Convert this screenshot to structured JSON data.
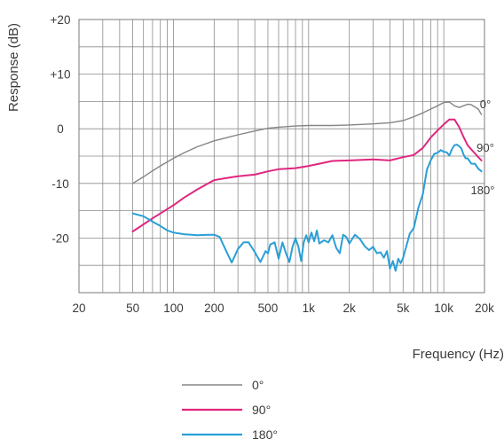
{
  "chart_data": {
    "type": "line",
    "xlabel": "Frequency (Hz)",
    "ylabel": "Response (dB)",
    "x_scale": "log",
    "xlim": [
      20,
      20000
    ],
    "ylim": [
      -30,
      20
    ],
    "grid": true,
    "legend_position": "bottom",
    "x_ticks": [
      {
        "value": 20,
        "label": "20"
      },
      {
        "value": 50,
        "label": "50"
      },
      {
        "value": 100,
        "label": "100"
      },
      {
        "value": 200,
        "label": "200"
      },
      {
        "value": 500,
        "label": "500"
      },
      {
        "value": 1000,
        "label": "1k"
      },
      {
        "value": 2000,
        "label": "2k"
      },
      {
        "value": 5000,
        "label": "5k"
      },
      {
        "value": 10000,
        "label": "10k"
      },
      {
        "value": 20000,
        "label": "20k"
      }
    ],
    "y_ticks": [
      {
        "value": 20,
        "label": "+20"
      },
      {
        "value": 10,
        "label": "+10"
      },
      {
        "value": 0,
        "label": "0"
      },
      {
        "value": -10,
        "label": "-10"
      },
      {
        "value": -20,
        "label": "-20"
      }
    ],
    "series": [
      {
        "name": "0°",
        "color": "#858585",
        "x": [
          50,
          60,
          70,
          80,
          100,
          120,
          150,
          200,
          250,
          300,
          400,
          500,
          600,
          800,
          1000,
          1500,
          2000,
          3000,
          4000,
          5000,
          6000,
          7000,
          8000,
          9000,
          10000,
          11000,
          12000,
          13000,
          14000,
          15000,
          16000,
          17000,
          18000,
          19000
        ],
        "y": [
          -10,
          -8.8,
          -7.7,
          -6.8,
          -5.4,
          -4.4,
          -3.3,
          -2.2,
          -1.6,
          -1.1,
          -0.4,
          0.1,
          0.3,
          0.5,
          0.6,
          0.6,
          0.7,
          0.9,
          1.1,
          1.5,
          2.2,
          2.9,
          3.6,
          4.2,
          4.8,
          4.9,
          4.2,
          3.9,
          4.2,
          4.5,
          4.4,
          4.0,
          3.6,
          2.6
        ]
      },
      {
        "name": "90°",
        "color": "#e0267f",
        "x": [
          50,
          60,
          70,
          80,
          100,
          120,
          150,
          200,
          250,
          300,
          400,
          500,
          600,
          800,
          1000,
          1500,
          2000,
          3000,
          4000,
          5000,
          6000,
          7000,
          8000,
          9000,
          10000,
          11000,
          12000,
          13000,
          14000,
          15000,
          16000,
          17000,
          18000,
          19000
        ],
        "y": [
          -18.8,
          -17.5,
          -16.4,
          -15.5,
          -14,
          -12.6,
          -11.1,
          -9.4,
          -9,
          -8.7,
          -8.4,
          -7.8,
          -7.4,
          -7.2,
          -6.8,
          -5.9,
          -5.8,
          -5.6,
          -5.8,
          -5.2,
          -4.8,
          -3.5,
          -1.6,
          -0.3,
          0.8,
          1.7,
          1.7,
          0.3,
          -1.5,
          -3,
          -3.8,
          -4.5,
          -5.2,
          -5.8
        ]
      },
      {
        "name": "180°",
        "color": "#2a9fd6",
        "x": [
          50,
          60,
          70,
          80,
          90,
          100,
          120,
          150,
          180,
          200,
          220,
          250,
          270,
          300,
          330,
          360,
          400,
          440,
          480,
          500,
          520,
          560,
          600,
          640,
          680,
          720,
          760,
          800,
          840,
          880,
          920,
          960,
          1000,
          1050,
          1100,
          1150,
          1200,
          1300,
          1400,
          1500,
          1600,
          1700,
          1800,
          1900,
          2000,
          2200,
          2400,
          2600,
          2800,
          3000,
          3200,
          3400,
          3600,
          3800,
          4000,
          4200,
          4400,
          4600,
          4800,
          5000,
          5300,
          5600,
          6000,
          6500,
          7000,
          7500,
          8000,
          8500,
          9000,
          9500,
          10000,
          10500,
          11000,
          11500,
          12000,
          12500,
          13000,
          13500,
          14000,
          14500,
          15000,
          16000,
          17000,
          18000,
          19000
        ],
        "y": [
          -15.5,
          -16,
          -17,
          -17.8,
          -18.6,
          -19,
          -19.3,
          -19.5,
          -19.4,
          -19.4,
          -19.8,
          -22.8,
          -24.5,
          -22,
          -20.8,
          -20.8,
          -22.6,
          -24.4,
          -22.4,
          -22.8,
          -21.2,
          -20.8,
          -23.8,
          -20.8,
          -22.8,
          -24.4,
          -21.6,
          -20,
          -21.6,
          -24.2,
          -20.8,
          -19.5,
          -20.8,
          -19,
          -20.6,
          -18.6,
          -21,
          -20.4,
          -20.8,
          -19.5,
          -21.8,
          -22.8,
          -19.4,
          -19.8,
          -21,
          -19.4,
          -20.2,
          -21.5,
          -22.2,
          -21.6,
          -22.8,
          -22.6,
          -23.6,
          -22.4,
          -25.6,
          -24.2,
          -26,
          -23.8,
          -24.6,
          -23.6,
          -21.4,
          -19.2,
          -18.2,
          -14.4,
          -12,
          -7.5,
          -5.8,
          -4.6,
          -4.4,
          -3.9,
          -4.2,
          -4.3,
          -4.9,
          -3.7,
          -3,
          -2.9,
          -3.2,
          -3.6,
          -4.7,
          -5.4,
          -5.4,
          -6.4,
          -6.4,
          -7.3,
          -7.8
        ]
      }
    ],
    "curve_labels": [
      {
        "series": 0,
        "text": "0°"
      },
      {
        "series": 1,
        "text": "90°"
      },
      {
        "series": 2,
        "text": "180°"
      }
    ]
  }
}
